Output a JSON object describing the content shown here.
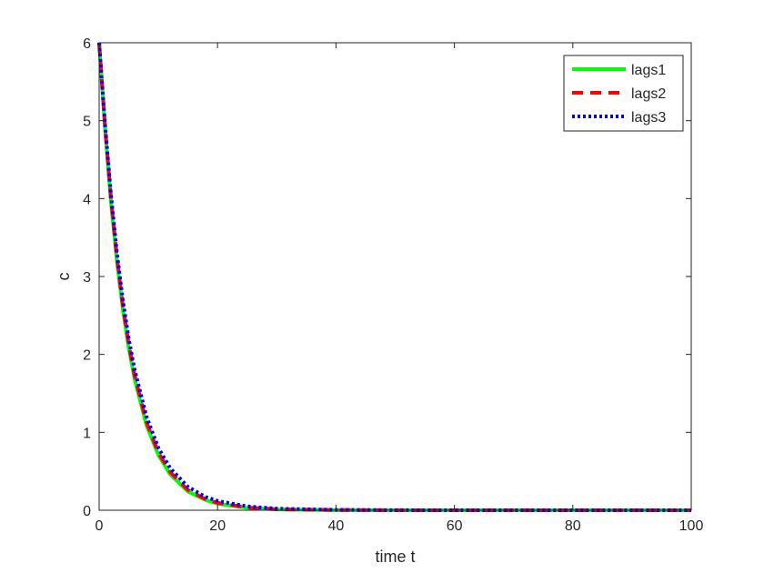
{
  "chart_data": {
    "type": "line",
    "title": "",
    "xlabel": "time t",
    "ylabel": "c",
    "xlim": [
      0,
      100
    ],
    "ylim": [
      0,
      6
    ],
    "x_ticks": [
      0,
      20,
      40,
      60,
      80,
      100
    ],
    "y_ticks": [
      0,
      1,
      2,
      3,
      4,
      5,
      6
    ],
    "grid": false,
    "legend_position": "top-right",
    "x": [
      0,
      1,
      2,
      3,
      4,
      5,
      6,
      8,
      10,
      12,
      15,
      18,
      20,
      25,
      30,
      40,
      50,
      60,
      80,
      100
    ],
    "series": [
      {
        "name": "lags1",
        "color": "#00ff00",
        "style": "solid",
        "values": [
          6.0,
          4.9,
          3.95,
          3.2,
          2.58,
          2.08,
          1.68,
          1.09,
          0.71,
          0.46,
          0.24,
          0.13,
          0.085,
          0.03,
          0.01,
          0.002,
          0.0,
          0.0,
          0.0,
          0.0
        ]
      },
      {
        "name": "lags2",
        "color": "#ff0000",
        "style": "dashed",
        "values": [
          6.0,
          4.92,
          4.0,
          3.25,
          2.63,
          2.13,
          1.73,
          1.13,
          0.74,
          0.49,
          0.26,
          0.14,
          0.095,
          0.035,
          0.012,
          0.003,
          0.0,
          0.0,
          0.0,
          0.0
        ]
      },
      {
        "name": "lags3",
        "color": "#0000ff",
        "style": "dotted",
        "values": [
          6.0,
          4.95,
          4.05,
          3.3,
          2.7,
          2.2,
          1.8,
          1.2,
          0.8,
          0.54,
          0.3,
          0.17,
          0.12,
          0.05,
          0.02,
          0.005,
          0.001,
          0.0,
          0.0,
          0.0
        ]
      }
    ]
  }
}
